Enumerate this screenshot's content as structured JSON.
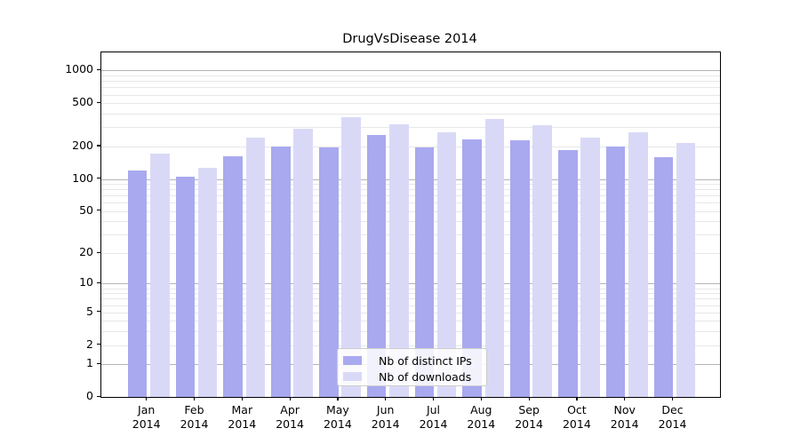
{
  "title": "DrugVsDisease 2014",
  "chart_data": {
    "type": "bar",
    "title": "DrugVsDisease 2014",
    "xlabel": "",
    "ylabel": "",
    "y_scale": "log1p",
    "yticks": [
      0,
      1,
      2,
      5,
      10,
      20,
      50,
      100,
      200,
      500,
      1000
    ],
    "ylim": [
      0,
      1500
    ],
    "grid": "on",
    "legend_position": "lower center",
    "categories": [
      "Jan",
      "Feb",
      "Mar",
      "Apr",
      "May",
      "Jun",
      "Jul",
      "Aug",
      "Sep",
      "Oct",
      "Nov",
      "Dec"
    ],
    "year_label": "2014",
    "series": [
      {
        "name": "Nb of distinct IPs",
        "color": "#a9a9f0",
        "values": [
          119,
          104,
          163,
          200,
          195,
          256,
          196,
          234,
          226,
          184,
          201,
          160
        ]
      },
      {
        "name": "Nb of downloads",
        "color": "#d9d9f7",
        "values": [
          172,
          128,
          243,
          292,
          370,
          323,
          269,
          359,
          313,
          241,
          269,
          214
        ]
      }
    ]
  },
  "colors": {
    "grid_major": "#b4b4b4",
    "grid_minor": "#e7e7e7",
    "spine": "#000000",
    "background": "#ffffff"
  }
}
